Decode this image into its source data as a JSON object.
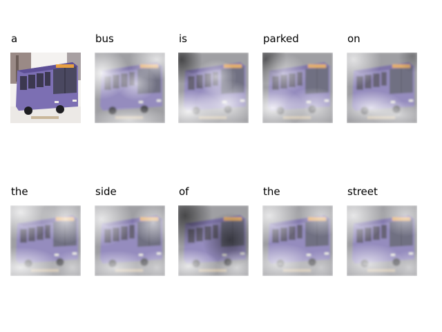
{
  "caption_words": [
    "a",
    "bus",
    "is",
    "parked",
    "on",
    "the",
    "side",
    "of",
    "the",
    "street"
  ],
  "colors": {
    "bus_body": "#7c6fb3",
    "bus_roof": "#5d4f96",
    "background": "#ffffff"
  },
  "panels": [
    {
      "word": "a",
      "attention": "original"
    },
    {
      "word": "bus",
      "attention": "overlay"
    },
    {
      "word": "is",
      "attention": "overlay"
    },
    {
      "word": "parked",
      "attention": "overlay"
    },
    {
      "word": "on",
      "attention": "overlay"
    },
    {
      "word": "the",
      "attention": "overlay"
    },
    {
      "word": "side",
      "attention": "overlay"
    },
    {
      "word": "of",
      "attention": "overlay"
    },
    {
      "word": "the",
      "attention": "overlay"
    },
    {
      "word": "street",
      "attention": "overlay"
    }
  ]
}
